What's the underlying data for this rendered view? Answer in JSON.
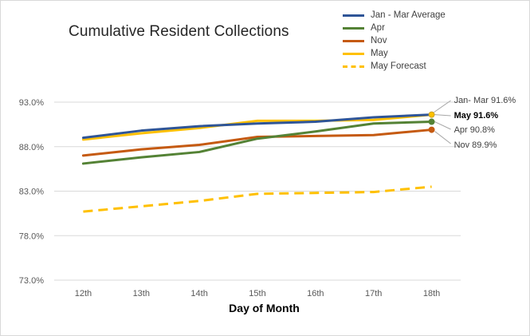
{
  "chart_data": {
    "type": "line",
    "title": "Cumulative Resident Collections",
    "xlabel": "Day of Month",
    "ylabel": "",
    "categories": [
      "12th",
      "13th",
      "14th",
      "15th",
      "16th",
      "17th",
      "18th"
    ],
    "ylim": [
      73.0,
      93.0
    ],
    "yticks": [
      "73.0%",
      "78.0%",
      "83.0%",
      "88.0%",
      "93.0%"
    ],
    "ytick_values": [
      73,
      78,
      83,
      88,
      93
    ],
    "grid": "horizontal",
    "legend_position": "top-right",
    "series": [
      {
        "name": "Jan - Mar Average",
        "color": "#2f5597",
        "dash": false,
        "values": [
          89.0,
          89.8,
          90.3,
          90.6,
          90.8,
          91.3,
          91.6
        ]
      },
      {
        "name": "Apr",
        "color": "#548235",
        "dash": false,
        "values": [
          86.1,
          86.8,
          87.4,
          88.9,
          89.7,
          90.6,
          90.8
        ]
      },
      {
        "name": "Nov",
        "color": "#c55a11",
        "dash": false,
        "values": [
          87.0,
          87.7,
          88.2,
          89.1,
          89.2,
          89.3,
          89.9
        ]
      },
      {
        "name": "May",
        "color": "#ffc000",
        "dash": false,
        "values": [
          88.8,
          89.5,
          90.1,
          90.9,
          90.9,
          91.0,
          91.6
        ]
      },
      {
        "name": "May Forecast",
        "color": "#ffc000",
        "dash": true,
        "values": [
          80.7,
          81.3,
          81.9,
          82.7,
          82.8,
          82.9,
          83.5
        ]
      }
    ],
    "annotations": [
      {
        "text": "Jan- Mar 91.6%",
        "series": "Jan - Mar Average",
        "bold": false
      },
      {
        "text": "May 91.6%",
        "series": "May",
        "bold": true
      },
      {
        "text": "Apr 90.8%",
        "series": "Apr",
        "bold": false
      },
      {
        "text": "Nov 89.9%",
        "series": "Nov",
        "bold": false
      }
    ]
  }
}
